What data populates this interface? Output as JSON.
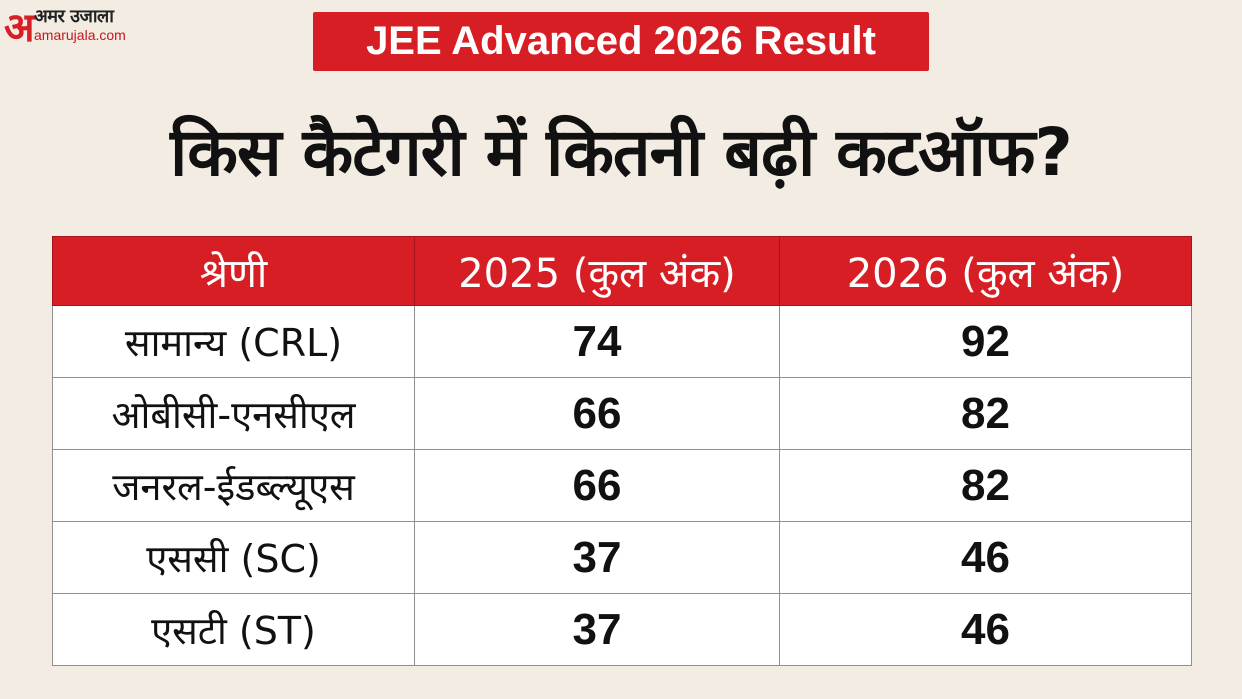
{
  "logo": {
    "glyph": "अ",
    "hindi": "अमर उजाला",
    "domain": "amarujala.com"
  },
  "badge": "JEE Advanced 2026 Result",
  "headline": "किस कैटेगरी में कितनी बढ़ी कटऑफ?",
  "table": {
    "headers": [
      "श्रेणी",
      "2025 (कुल अंक)",
      "2026 (कुल अंक)"
    ],
    "rows": [
      {
        "category": "सामान्य (CRL)",
        "y2025": "74",
        "y2026": "92"
      },
      {
        "category": "ओबीसी-एनसीएल",
        "y2025": "66",
        "y2026": "82"
      },
      {
        "category": "जनरल-ईडब्ल्यूएस",
        "y2025": "66",
        "y2026": "82"
      },
      {
        "category": "एससी (SC)",
        "y2025": "37",
        "y2026": "46"
      },
      {
        "category": "एसटी (ST)",
        "y2025": "37",
        "y2026": "46"
      }
    ]
  },
  "colors": {
    "accent": "#d71e25",
    "background": "#f3ece2"
  }
}
